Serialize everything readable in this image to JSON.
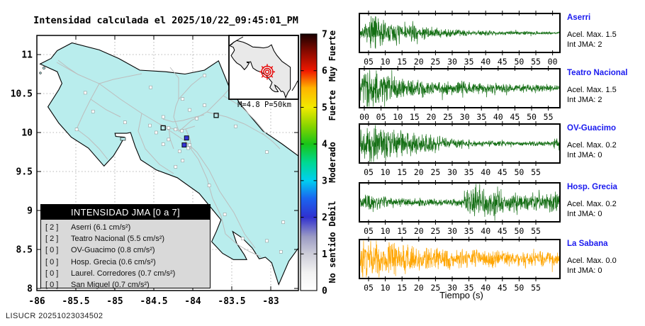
{
  "title": "Intensidad calculada el 2025/10/22_09:45:01_PM",
  "watermark": "LISUCR 20251023034502",
  "colors": {
    "land": "#b9eded",
    "ocean": "#ffffff",
    "road": "#bdbdbd",
    "coast": "#000000",
    "inset_land": "#e9e9e9",
    "epicenter": "#e80000",
    "station_label_blue": "#1a1aef",
    "trace_green": "#156f15",
    "trace_orange": "#ffa500",
    "legend_header_bg": "#000000",
    "legend_body_bg": "#d9d9d9",
    "station_intensity2": "#3535d8",
    "station_intensity0": "#ffffff"
  },
  "map": {
    "x_ticks": [
      "-86",
      "-85.5",
      "-85",
      "-84.5",
      "-84",
      "-83.5",
      "-83"
    ],
    "y_ticks": [
      "11",
      "10.5",
      "10",
      "9.5",
      "9",
      "8.5",
      "8"
    ],
    "inset_caption": "M=4.8 P=50km",
    "legend_title": "INTENSIDAD JMA [0 a 7]",
    "legend_items": [
      {
        "jma": "[ 2 ]",
        "label": "Aserri (6.1 cm/s²)"
      },
      {
        "jma": "[ 2 ]",
        "label": "Teatro Nacional (5.5 cm/s²)"
      },
      {
        "jma": "[ 0 ]",
        "label": "OV-Guacimo (0.8 cm/s²)"
      },
      {
        "jma": "[ 0 ]",
        "label": "Hosp. Grecia (0.6 cm/s²)"
      },
      {
        "jma": "[ 0 ]",
        "label": "Laurel. Corredores (0.7 cm/s²)"
      },
      {
        "jma": "[ 0 ]",
        "label": "San Miguel (0.7 cm/s²)"
      }
    ],
    "colorbar": {
      "ticks": [
        "0",
        "1",
        "2",
        "3",
        "4",
        "5",
        "6",
        "7"
      ],
      "categories": [
        {
          "label": "No sentido",
          "value": 0.9
        },
        {
          "label": "Debil",
          "value": 2.1
        },
        {
          "label": "Moderado",
          "value": 3.5
        },
        {
          "label": "Fuerte",
          "value": 5.05
        },
        {
          "label": "Muy Fuerte",
          "value": 6.4
        }
      ]
    }
  },
  "chart_data": {
    "map": {
      "type": "map",
      "region": "Costa Rica",
      "lon_range": [
        -86,
        -82.65
      ],
      "lat_range": [
        8,
        11.25
      ],
      "grid": "dashed 0.5 degree",
      "magnitude": "M=4.8",
      "depth": "P=50km",
      "epicenter": {
        "lon": -83.9,
        "lat": 9.45
      },
      "stations": [
        {
          "name": "Teatro Nacional",
          "lon": -84.08,
          "lat": 9.93,
          "intensity": 2,
          "marker": "blue"
        },
        {
          "name": "Aserri",
          "lon": -84.11,
          "lat": 9.84,
          "intensity": 2,
          "marker": "blue"
        },
        {
          "name": "Hosp. Grecia",
          "lon": -84.38,
          "lat": 10.06,
          "intensity": 0,
          "marker": "open"
        },
        {
          "name": "OV-Guacimo",
          "lon": -83.7,
          "lat": 10.22,
          "intensity": 0,
          "marker": "open"
        },
        {
          "name": "Laurel. Corredores",
          "lon": -82.87,
          "lat": 8.47,
          "intensity": 0,
          "marker": "white"
        },
        {
          "name": "San Miguel",
          "lon": -84.06,
          "lat": 9.8,
          "intensity": 0,
          "marker": "white"
        },
        {
          "lon": -85.38,
          "lat": 10.51,
          "intensity": 0,
          "marker": "white"
        },
        {
          "lon": -85.28,
          "lat": 10.27,
          "intensity": 0,
          "marker": "white"
        },
        {
          "lon": -85.49,
          "lat": 10.04,
          "intensity": 0,
          "marker": "white"
        },
        {
          "lon": -84.87,
          "lat": 10.13,
          "intensity": 0,
          "marker": "white"
        },
        {
          "lon": -84.54,
          "lat": 10.58,
          "intensity": 0,
          "marker": "white"
        },
        {
          "lon": -84.13,
          "lat": 10.43,
          "intensity": 0,
          "marker": "white"
        },
        {
          "lon": -83.85,
          "lat": 10.35,
          "intensity": 0,
          "marker": "white"
        },
        {
          "lon": -83.85,
          "lat": 10.73,
          "intensity": 0,
          "marker": "white"
        },
        {
          "lon": -84.38,
          "lat": 10.2,
          "intensity": 0,
          "marker": "white"
        },
        {
          "lon": -84.04,
          "lat": 10.29,
          "intensity": 0,
          "marker": "white"
        },
        {
          "lon": -83.95,
          "lat": 10.18,
          "intensity": 0,
          "marker": "white"
        },
        {
          "lon": -84.55,
          "lat": 10.09,
          "intensity": 0,
          "marker": "white"
        },
        {
          "lon": -84.31,
          "lat": 10.06,
          "intensity": 0,
          "marker": "white"
        },
        {
          "lon": -84.22,
          "lat": 10.04,
          "intensity": 0,
          "marker": "white"
        },
        {
          "lon": -84.14,
          "lat": 10.02,
          "intensity": 0,
          "marker": "white"
        },
        {
          "lon": -84.47,
          "lat": 10.0,
          "intensity": 0,
          "marker": "white"
        },
        {
          "lon": -84.38,
          "lat": 9.85,
          "intensity": 0,
          "marker": "white"
        },
        {
          "lon": -84.31,
          "lat": 9.91,
          "intensity": 0,
          "marker": "white"
        },
        {
          "lon": -84.04,
          "lat": 9.84,
          "intensity": 0,
          "marker": "white"
        },
        {
          "lon": -84.17,
          "lat": 9.76,
          "intensity": 0,
          "marker": "white"
        },
        {
          "lon": -84.13,
          "lat": 9.64,
          "intensity": 0,
          "marker": "white"
        },
        {
          "lon": -84.22,
          "lat": 9.56,
          "intensity": 0,
          "marker": "white"
        },
        {
          "lon": -83.79,
          "lat": 9.32,
          "intensity": 0,
          "marker": "white"
        },
        {
          "lon": -83.45,
          "lat": 10.08,
          "intensity": 0,
          "marker": "white"
        },
        {
          "lon": -83.05,
          "lat": 9.75,
          "intensity": 0,
          "marker": "white"
        },
        {
          "lon": -83.59,
          "lat": 8.95,
          "intensity": 0,
          "marker": "white"
        },
        {
          "lon": -83.36,
          "lat": 8.64,
          "intensity": 0,
          "marker": "white"
        },
        {
          "lon": -83.05,
          "lat": 8.61,
          "intensity": 0,
          "marker": "white"
        },
        {
          "lon": -82.84,
          "lat": 8.85,
          "intensity": 0,
          "marker": "white"
        }
      ]
    },
    "waveforms": {
      "type": "line",
      "xlabel": "Tiempo (s)",
      "duration_seconds": 60,
      "panels": [
        {
          "station": "Aserri",
          "acel_max": "Acel. Max. 1.5",
          "int_jma": "Int JMA: 2",
          "color_key": "trace_green",
          "x_tick_labels": [
            "05",
            "10",
            "15",
            "20",
            "25",
            "30",
            "35",
            "40",
            "45",
            "50",
            "55",
            "00"
          ],
          "envelope": [
            [
              0,
              0.22
            ],
            [
              0.04,
              0.5
            ],
            [
              0.07,
              1.0
            ],
            [
              0.1,
              0.6
            ],
            [
              0.18,
              0.5
            ],
            [
              0.28,
              0.32
            ],
            [
              0.45,
              0.18
            ],
            [
              0.6,
              0.12
            ],
            [
              0.75,
              0.09
            ],
            [
              1,
              0.06
            ]
          ]
        },
        {
          "station": "Teatro Nacional",
          "acel_max": "Acel. Max. 1.5",
          "int_jma": "Int JMA: 2",
          "color_key": "trace_green",
          "x_tick_labels": [
            "00",
            "05",
            "10",
            "15",
            "20",
            "25",
            "30",
            "35",
            "40",
            "45",
            "50",
            "55"
          ],
          "envelope": [
            [
              0,
              0.55
            ],
            [
              0.04,
              0.95
            ],
            [
              0.1,
              0.65
            ],
            [
              0.2,
              0.45
            ],
            [
              0.35,
              0.32
            ],
            [
              0.55,
              0.25
            ],
            [
              0.75,
              0.2
            ],
            [
              1,
              0.14
            ]
          ]
        },
        {
          "station": "OV-Guacimo",
          "acel_max": "Acel. Max. 0.2",
          "int_jma": "Int JMA: 0",
          "color_key": "trace_green",
          "x_tick_labels": [
            "05",
            "10",
            "15",
            "20",
            "25",
            "30",
            "35",
            "40",
            "45",
            "50",
            "55"
          ],
          "envelope": [
            [
              0,
              0.5
            ],
            [
              0.05,
              0.95
            ],
            [
              0.12,
              0.75
            ],
            [
              0.2,
              0.6
            ],
            [
              0.3,
              0.45
            ],
            [
              0.45,
              0.22
            ],
            [
              0.6,
              0.13
            ],
            [
              0.8,
              0.1
            ],
            [
              0.96,
              0.1
            ],
            [
              0.99,
              0.35
            ],
            [
              1,
              0.2
            ]
          ]
        },
        {
          "station": "Hosp. Grecia",
          "acel_max": "Acel. Max. 0.2",
          "int_jma": "Int JMA: 0",
          "color_key": "trace_green",
          "x_tick_labels": [
            "05",
            "10",
            "15",
            "20",
            "25",
            "30",
            "35",
            "40",
            "45",
            "50",
            "55"
          ],
          "envelope": [
            [
              0,
              0.3
            ],
            [
              0.06,
              0.35
            ],
            [
              0.18,
              0.2
            ],
            [
              0.35,
              0.16
            ],
            [
              0.5,
              0.16
            ],
            [
              0.55,
              0.6
            ],
            [
              0.585,
              1.0
            ],
            [
              0.62,
              0.55
            ],
            [
              0.66,
              0.75
            ],
            [
              0.7,
              0.6
            ],
            [
              0.74,
              0.35
            ],
            [
              0.78,
              0.5
            ],
            [
              0.82,
              0.3
            ],
            [
              0.87,
              0.4
            ],
            [
              0.92,
              0.3
            ],
            [
              0.97,
              0.5
            ],
            [
              1,
              0.35
            ]
          ]
        },
        {
          "station": "La Sabana",
          "acel_max": "Acel. Max. 0.0",
          "int_jma": "Int JMA: 0",
          "color_key": "trace_orange",
          "x_tick_labels": [
            "05",
            "10",
            "15",
            "20",
            "25",
            "30",
            "35",
            "40",
            "45",
            "50",
            "55"
          ],
          "envelope": [
            [
              0,
              0.75
            ],
            [
              0.05,
              0.95
            ],
            [
              0.12,
              0.8
            ],
            [
              0.25,
              0.6
            ],
            [
              0.4,
              0.45
            ],
            [
              0.55,
              0.4
            ],
            [
              0.7,
              0.35
            ],
            [
              0.85,
              0.32
            ],
            [
              1,
              0.3
            ]
          ]
        }
      ]
    }
  }
}
